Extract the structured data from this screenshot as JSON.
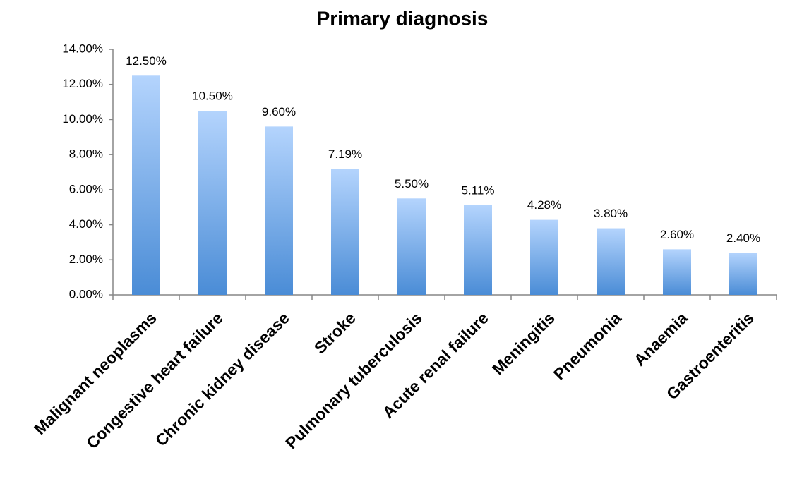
{
  "chart_data": {
    "type": "bar",
    "title": "Primary diagnosis",
    "categories": [
      "Malignant neoplasms",
      "Congestive heart failure",
      "Chronic kidney disease",
      "Stroke",
      "Pulmonary tuberculosis",
      "Acute renal failure",
      "Meningitis",
      "Pneumonia",
      "Anaemia",
      "Gastroenteritis"
    ],
    "values": [
      12.5,
      10.5,
      9.6,
      7.19,
      5.5,
      5.11,
      4.28,
      3.8,
      2.6,
      2.4
    ],
    "value_labels": [
      "12.50%",
      "10.50%",
      "9.60%",
      "7.19%",
      "5.50%",
      "5.11%",
      "4.28%",
      "3.80%",
      "2.60%",
      "2.40%"
    ],
    "color": "#4a8cd6",
    "ylim": [
      0,
      14
    ],
    "yticks": [
      {
        "value": 0,
        "label": "0.00%"
      },
      {
        "value": 2,
        "label": "2.00%"
      },
      {
        "value": 4,
        "label": "4.00%"
      },
      {
        "value": 6,
        "label": "6.00%"
      },
      {
        "value": 8,
        "label": "8.00%"
      },
      {
        "value": 10,
        "label": "10.00%"
      },
      {
        "value": 12,
        "label": "12.00%"
      },
      {
        "value": 14,
        "label": "14.00%"
      }
    ],
    "grid": false
  }
}
